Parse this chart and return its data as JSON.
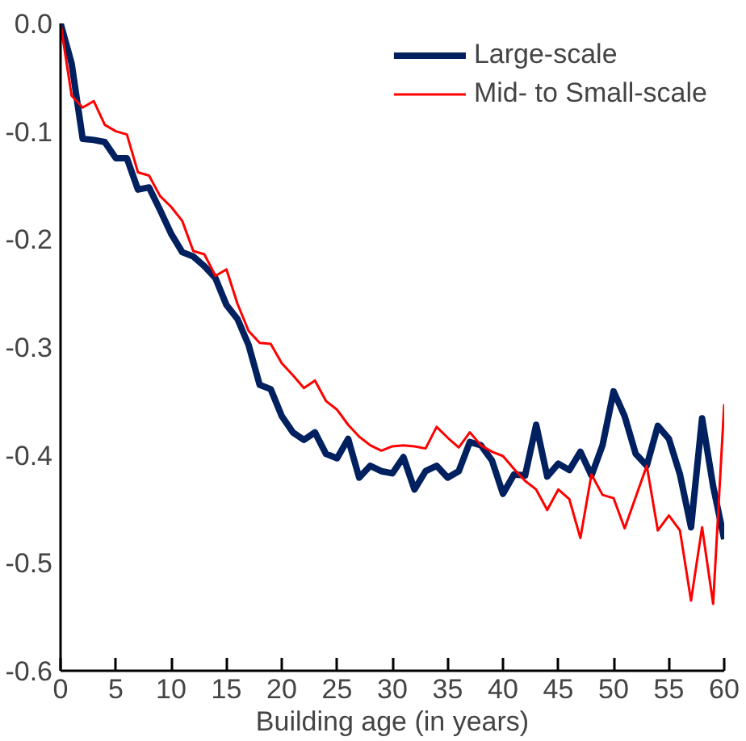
{
  "chart_data": {
    "type": "line",
    "xlabel": "Building age (in years)",
    "x": [
      0,
      1,
      2,
      3,
      4,
      5,
      6,
      7,
      8,
      9,
      10,
      11,
      12,
      13,
      14,
      15,
      16,
      17,
      18,
      19,
      20,
      21,
      22,
      23,
      24,
      25,
      26,
      27,
      28,
      29,
      30,
      31,
      32,
      33,
      34,
      35,
      36,
      37,
      38,
      39,
      40,
      41,
      42,
      43,
      44,
      45,
      46,
      47,
      48,
      49,
      50,
      51,
      52,
      53,
      54,
      55,
      56,
      57,
      58,
      59,
      60
    ],
    "series": [
      {
        "name": "Large-scale",
        "color": "#002060",
        "values": [
          0,
          -0.037,
          -0.107,
          -0.108,
          -0.11,
          -0.125,
          -0.125,
          -0.154,
          -0.152,
          -0.173,
          -0.195,
          -0.212,
          -0.216,
          -0.225,
          -0.236,
          -0.261,
          -0.274,
          -0.298,
          -0.335,
          -0.339,
          -0.364,
          -0.379,
          -0.386,
          -0.379,
          -0.399,
          -0.403,
          -0.385,
          -0.421,
          -0.41,
          -0.415,
          -0.417,
          -0.402,
          -0.432,
          -0.415,
          -0.41,
          -0.421,
          -0.415,
          -0.388,
          -0.391,
          -0.405,
          -0.436,
          -0.418,
          -0.419,
          -0.372,
          -0.42,
          -0.408,
          -0.414,
          -0.397,
          -0.419,
          -0.391,
          -0.341,
          -0.364,
          -0.399,
          -0.41,
          -0.373,
          -0.385,
          -0.418,
          -0.467,
          -0.366,
          -0.429,
          -0.478
        ]
      },
      {
        "name": "Mid- to Small-scale",
        "color": "#ff0000",
        "values": [
          0,
          -0.067,
          -0.078,
          -0.072,
          -0.094,
          -0.1,
          -0.103,
          -0.138,
          -0.141,
          -0.16,
          -0.17,
          -0.183,
          -0.211,
          -0.214,
          -0.234,
          -0.228,
          -0.26,
          -0.285,
          -0.296,
          -0.297,
          -0.315,
          -0.326,
          -0.338,
          -0.331,
          -0.35,
          -0.358,
          -0.372,
          -0.383,
          -0.391,
          -0.396,
          -0.392,
          -0.391,
          -0.392,
          -0.394,
          -0.374,
          -0.384,
          -0.393,
          -0.379,
          -0.391,
          -0.397,
          -0.401,
          -0.413,
          -0.424,
          -0.432,
          -0.451,
          -0.432,
          -0.441,
          -0.477,
          -0.418,
          -0.437,
          -0.44,
          -0.468,
          -0.439,
          -0.41,
          -0.47,
          -0.456,
          -0.47,
          -0.535,
          -0.467,
          -0.538,
          -0.353
        ]
      }
    ],
    "xlim": [
      0,
      60
    ],
    "xticks": [
      0,
      5,
      10,
      15,
      20,
      25,
      30,
      35,
      40,
      45,
      50,
      55,
      60
    ],
    "ylim": [
      -0.6,
      0
    ],
    "yticks": [
      {
        "value": -0.6,
        "label": "-0.6"
      },
      {
        "value": -0.5,
        "label": "-0.5"
      },
      {
        "value": -0.4,
        "label": "-0.4"
      },
      {
        "value": -0.3,
        "label": "-0.3"
      },
      {
        "value": -0.2,
        "label": "-0.2"
      },
      {
        "value": -0.1,
        "label": "-0.1"
      },
      {
        "value": 0,
        "label": "0.0"
      }
    ],
    "grid": false,
    "legend": "top right"
  }
}
